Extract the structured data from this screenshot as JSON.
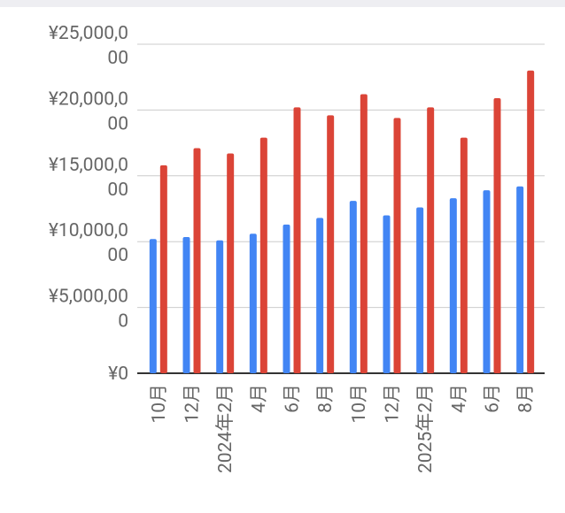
{
  "chart_data": {
    "type": "bar",
    "categories": [
      "10月",
      "12月",
      "2024年2月",
      "4月",
      "6月",
      "8月",
      "10月",
      "12月",
      "2025年2月",
      "4月",
      "6月",
      "8月"
    ],
    "series": [
      {
        "color": "#4285f4",
        "values": [
          10200000,
          10350000,
          10100000,
          10600000,
          11300000,
          11800000,
          13100000,
          12000000,
          12600000,
          13300000,
          13900000,
          14200000
        ]
      },
      {
        "color": "#db4437",
        "values": [
          15800000,
          17100000,
          16700000,
          17900000,
          20200000,
          19600000,
          21200000,
          19400000,
          20200000,
          17900000,
          20900000,
          23000000
        ]
      }
    ],
    "ylim": [
      0,
      25000000
    ],
    "yticks": [
      {
        "value": 0,
        "label": "¥0"
      },
      {
        "value": 5000000,
        "label": "¥5,000,000"
      },
      {
        "value": 10000000,
        "label": "¥10,000,000"
      },
      {
        "value": 15000000,
        "label": "¥15,000,000"
      },
      {
        "value": 20000000,
        "label": "¥20,000,000"
      },
      {
        "value": 25000000,
        "label": "¥25,000,000"
      }
    ],
    "grid": true
  }
}
